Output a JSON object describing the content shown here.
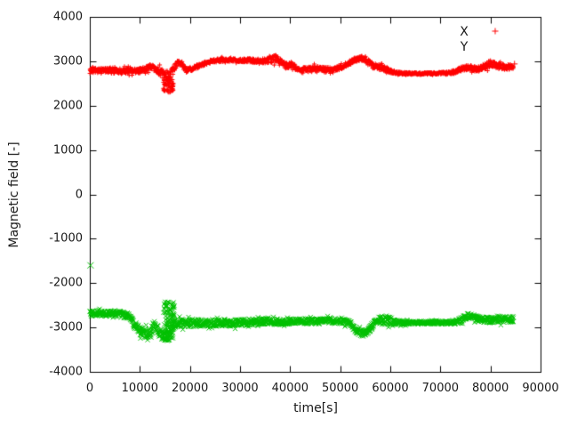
{
  "chart_data": {
    "type": "scatter",
    "title": "",
    "xlabel": "time[s]",
    "ylabel": "Magnetic field [-]",
    "xlim": [
      0,
      90000
    ],
    "ylim": [
      -4000,
      4000
    ],
    "grid": false,
    "xticks": [
      0,
      10000,
      20000,
      30000,
      40000,
      50000,
      60000,
      70000,
      80000,
      90000
    ],
    "xtick_labels": [
      "0",
      "10000",
      "20000",
      "30000",
      "40000",
      "50000",
      "60000",
      "70000",
      "80000",
      "90000"
    ],
    "yticks": [
      -4000,
      -3000,
      -2000,
      -1000,
      0,
      1000,
      2000,
      3000,
      4000
    ],
    "ytick_labels": [
      "-4000",
      "-3000",
      "-2000",
      "-1000",
      "0",
      "1000",
      "2000",
      "3000",
      "4000"
    ],
    "legend": {
      "position": "top-right",
      "entries": [
        {
          "label": "X",
          "marker": "plus",
          "color": "#ff0000",
          "sample_visible": true
        },
        {
          "label": "Y",
          "marker": "cross",
          "color": "#00c000",
          "sample_visible": false
        }
      ]
    },
    "series": [
      {
        "name": "X",
        "marker": "plus",
        "color": "#ff0000",
        "t_end": 84600,
        "trend": [
          [
            0,
            2790,
            65
          ],
          [
            2000,
            2800,
            60
          ],
          [
            4000,
            2785,
            60
          ],
          [
            6000,
            2775,
            65
          ],
          [
            8000,
            2800,
            65
          ],
          [
            9500,
            2770,
            60
          ],
          [
            11000,
            2820,
            60
          ],
          [
            12300,
            2880,
            60
          ],
          [
            13200,
            2820,
            65
          ],
          [
            14000,
            2760,
            90
          ],
          [
            14800,
            2700,
            120
          ],
          [
            15600,
            2660,
            140
          ],
          [
            16300,
            2720,
            110
          ],
          [
            17000,
            2870,
            70
          ],
          [
            17600,
            2980,
            55
          ],
          [
            18400,
            2940,
            55
          ],
          [
            19300,
            2800,
            55
          ],
          [
            20200,
            2830,
            50
          ],
          [
            21500,
            2880,
            45
          ],
          [
            23000,
            2950,
            40
          ],
          [
            24500,
            3010,
            40
          ],
          [
            26000,
            3025,
            40
          ],
          [
            28000,
            3030,
            35
          ],
          [
            30000,
            3025,
            40
          ],
          [
            32000,
            3020,
            45
          ],
          [
            33500,
            3000,
            55
          ],
          [
            35000,
            3010,
            60
          ],
          [
            36500,
            3050,
            80
          ],
          [
            37400,
            3060,
            90
          ],
          [
            38300,
            2960,
            70
          ],
          [
            39200,
            2900,
            65
          ],
          [
            40200,
            2930,
            60
          ],
          [
            41200,
            2860,
            60
          ],
          [
            42500,
            2800,
            70
          ],
          [
            44000,
            2820,
            65
          ],
          [
            45500,
            2840,
            60
          ],
          [
            47000,
            2810,
            60
          ],
          [
            48500,
            2820,
            55
          ],
          [
            50000,
            2860,
            50
          ],
          [
            51500,
            2940,
            50
          ],
          [
            53000,
            3040,
            55
          ],
          [
            54300,
            3080,
            60
          ],
          [
            55500,
            3000,
            55
          ],
          [
            56500,
            2900,
            60
          ],
          [
            57800,
            2860,
            70
          ],
          [
            59000,
            2830,
            60
          ],
          [
            60500,
            2760,
            40
          ],
          [
            62000,
            2730,
            28
          ],
          [
            64000,
            2725,
            24
          ],
          [
            66000,
            2722,
            22
          ],
          [
            68000,
            2725,
            22
          ],
          [
            70000,
            2730,
            25
          ],
          [
            71500,
            2740,
            30
          ],
          [
            73000,
            2760,
            45
          ],
          [
            74500,
            2840,
            55
          ],
          [
            75800,
            2870,
            55
          ],
          [
            77000,
            2820,
            55
          ],
          [
            78200,
            2840,
            60
          ],
          [
            79500,
            2930,
            80
          ],
          [
            80700,
            2950,
            85
          ],
          [
            81800,
            2890,
            65
          ],
          [
            83000,
            2865,
            60
          ],
          [
            84600,
            2890,
            55
          ]
        ],
        "bursts": [
          {
            "t_range": [
              14700,
              16700
            ],
            "v_range": [
              2300,
              2590
            ],
            "count": 60
          }
        ],
        "outliers": [
          [
            84800,
            2940
          ]
        ]
      },
      {
        "name": "Y",
        "marker": "cross",
        "color": "#00c000",
        "t_end": 84600,
        "trend": [
          [
            0,
            -2680,
            70
          ],
          [
            2000,
            -2685,
            65
          ],
          [
            4000,
            -2690,
            65
          ],
          [
            6000,
            -2700,
            70
          ],
          [
            7800,
            -2730,
            75
          ],
          [
            9000,
            -2950,
            95
          ],
          [
            10000,
            -3080,
            100
          ],
          [
            11000,
            -3130,
            110
          ],
          [
            12000,
            -3110,
            110
          ],
          [
            12900,
            -2930,
            100
          ],
          [
            13700,
            -3070,
            110
          ],
          [
            14600,
            -3200,
            100
          ],
          [
            15500,
            -3190,
            110
          ],
          [
            16300,
            -3030,
            130
          ],
          [
            17000,
            -2920,
            90
          ],
          [
            18000,
            -2900,
            85
          ],
          [
            20000,
            -2905,
            85
          ],
          [
            22000,
            -2895,
            80
          ],
          [
            24000,
            -2900,
            80
          ],
          [
            26000,
            -2890,
            80
          ],
          [
            28000,
            -2900,
            80
          ],
          [
            30000,
            -2890,
            75
          ],
          [
            32000,
            -2880,
            80
          ],
          [
            34000,
            -2870,
            75
          ],
          [
            36000,
            -2865,
            70
          ],
          [
            38000,
            -2875,
            70
          ],
          [
            40000,
            -2865,
            65
          ],
          [
            42000,
            -2855,
            65
          ],
          [
            44000,
            -2860,
            65
          ],
          [
            46000,
            -2855,
            60
          ],
          [
            48000,
            -2850,
            60
          ],
          [
            50000,
            -2855,
            60
          ],
          [
            51800,
            -2900,
            60
          ],
          [
            53200,
            -3060,
            70
          ],
          [
            54400,
            -3150,
            70
          ],
          [
            55600,
            -3070,
            70
          ],
          [
            56800,
            -2910,
            75
          ],
          [
            58000,
            -2830,
            95
          ],
          [
            59500,
            -2840,
            105
          ],
          [
            61000,
            -2880,
            60
          ],
          [
            62500,
            -2895,
            40
          ],
          [
            64500,
            -2890,
            35
          ],
          [
            67000,
            -2890,
            35
          ],
          [
            69500,
            -2885,
            35
          ],
          [
            71500,
            -2890,
            40
          ],
          [
            73500,
            -2870,
            55
          ],
          [
            75000,
            -2760,
            70
          ],
          [
            76000,
            -2730,
            70
          ],
          [
            77000,
            -2790,
            65
          ],
          [
            78500,
            -2830,
            70
          ],
          [
            80000,
            -2830,
            70
          ],
          [
            81500,
            -2810,
            75
          ],
          [
            83000,
            -2825,
            70
          ],
          [
            84600,
            -2815,
            65
          ]
        ],
        "bursts": [
          {
            "t_range": [
              14700,
              16900
            ],
            "v_range": [
              -3290,
              -2410
            ],
            "count": 110
          }
        ],
        "outliers": [
          [
            150,
            -1600
          ]
        ]
      }
    ]
  }
}
